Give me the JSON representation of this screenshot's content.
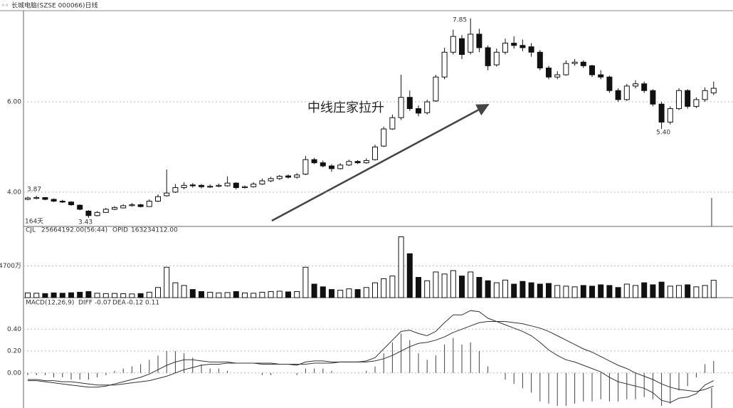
{
  "title": "长城电脑(SZSE 000066)日线",
  "chart_data": [
    {
      "type": "candlestick",
      "ylim": [
        3.24,
        8.02
      ],
      "yticks": [
        {
          "value": 6,
          "label": "6.00"
        },
        {
          "value": 4,
          "label": "4.00"
        }
      ],
      "grid": true,
      "up_color": "#ffffff",
      "down_color": "#111111",
      "edge_color": "#111111",
      "annotations": [
        "3.87",
        "3.43",
        "7.85",
        "5.40",
        "164天",
        "中线庄家拉升"
      ],
      "ohlc": [
        [
          3.84,
          3.9,
          3.82,
          3.87
        ],
        [
          3.86,
          3.92,
          3.84,
          3.88
        ],
        [
          3.88,
          3.89,
          3.82,
          3.84
        ],
        [
          3.84,
          3.86,
          3.78,
          3.8
        ],
        [
          3.8,
          3.83,
          3.76,
          3.78
        ],
        [
          3.78,
          3.8,
          3.7,
          3.72
        ],
        [
          3.71,
          3.73,
          3.6,
          3.62
        ],
        [
          3.58,
          3.6,
          3.43,
          3.48
        ],
        [
          3.48,
          3.58,
          3.46,
          3.55
        ],
        [
          3.55,
          3.65,
          3.54,
          3.62
        ],
        [
          3.62,
          3.69,
          3.6,
          3.66
        ],
        [
          3.65,
          3.73,
          3.64,
          3.7
        ],
        [
          3.7,
          3.76,
          3.68,
          3.72
        ],
        [
          3.72,
          3.74,
          3.66,
          3.68
        ],
        [
          3.68,
          3.84,
          3.67,
          3.8
        ],
        [
          3.8,
          3.95,
          3.78,
          3.9
        ],
        [
          3.92,
          4.5,
          3.9,
          3.98
        ],
        [
          4.0,
          4.18,
          3.98,
          4.1
        ],
        [
          4.1,
          4.22,
          4.06,
          4.15
        ],
        [
          4.16,
          4.2,
          4.1,
          4.14
        ],
        [
          4.15,
          4.18,
          4.08,
          4.12
        ],
        [
          4.11,
          4.17,
          4.09,
          4.13
        ],
        [
          4.13,
          4.19,
          4.11,
          4.15
        ],
        [
          4.14,
          4.35,
          4.12,
          4.2
        ],
        [
          4.2,
          4.22,
          4.06,
          4.1
        ],
        [
          4.1,
          4.15,
          4.08,
          4.12
        ],
        [
          4.12,
          4.22,
          4.1,
          4.18
        ],
        [
          4.18,
          4.3,
          4.16,
          4.25
        ],
        [
          4.25,
          4.34,
          4.22,
          4.3
        ],
        [
          4.3,
          4.38,
          4.27,
          4.35
        ],
        [
          4.36,
          4.39,
          4.3,
          4.33
        ],
        [
          4.33,
          4.42,
          4.3,
          4.38
        ],
        [
          4.4,
          4.8,
          4.38,
          4.72
        ],
        [
          4.72,
          4.76,
          4.62,
          4.65
        ],
        [
          4.65,
          4.7,
          4.55,
          4.58
        ],
        [
          4.58,
          4.62,
          4.45,
          4.52
        ],
        [
          4.52,
          4.64,
          4.5,
          4.6
        ],
        [
          4.6,
          4.72,
          4.58,
          4.68
        ],
        [
          4.68,
          4.71,
          4.62,
          4.65
        ],
        [
          4.65,
          4.75,
          4.63,
          4.7
        ],
        [
          4.72,
          5.05,
          4.7,
          5.0
        ],
        [
          5.02,
          5.45,
          5.0,
          5.4
        ],
        [
          5.4,
          5.72,
          5.38,
          5.65
        ],
        [
          5.65,
          6.6,
          5.6,
          6.1
        ],
        [
          6.1,
          6.25,
          5.8,
          5.85
        ],
        [
          5.85,
          5.92,
          5.68,
          5.75
        ],
        [
          5.76,
          6.05,
          5.72,
          6.0
        ],
        [
          6.02,
          6.6,
          6.0,
          6.55
        ],
        [
          6.55,
          7.2,
          6.5,
          7.1
        ],
        [
          7.1,
          7.6,
          7.05,
          7.45
        ],
        [
          7.4,
          7.48,
          6.95,
          7.05
        ],
        [
          7.1,
          7.85,
          7.05,
          7.5
        ],
        [
          7.5,
          7.62,
          7.1,
          7.2
        ],
        [
          7.2,
          7.25,
          6.7,
          6.8
        ],
        [
          6.82,
          7.18,
          6.78,
          7.1
        ],
        [
          7.1,
          7.4,
          7.05,
          7.3
        ],
        [
          7.3,
          7.45,
          7.18,
          7.25
        ],
        [
          7.25,
          7.38,
          7.12,
          7.2
        ],
        [
          7.22,
          7.3,
          7.0,
          7.1
        ],
        [
          7.1,
          7.15,
          6.7,
          6.75
        ],
        [
          6.75,
          6.8,
          6.5,
          6.55
        ],
        [
          6.55,
          6.68,
          6.5,
          6.6
        ],
        [
          6.6,
          6.92,
          6.58,
          6.85
        ],
        [
          6.85,
          6.95,
          6.8,
          6.88
        ],
        [
          6.88,
          6.92,
          6.75,
          6.8
        ],
        [
          6.8,
          6.82,
          6.55,
          6.6
        ],
        [
          6.6,
          6.7,
          6.5,
          6.55
        ],
        [
          6.55,
          6.58,
          6.2,
          6.25
        ],
        [
          6.25,
          6.3,
          6.0,
          6.05
        ],
        [
          6.05,
          6.4,
          6.02,
          6.35
        ],
        [
          6.35,
          6.48,
          6.3,
          6.4
        ],
        [
          6.4,
          6.45,
          6.2,
          6.25
        ],
        [
          6.25,
          6.28,
          5.9,
          5.95
        ],
        [
          5.95,
          6.0,
          5.4,
          5.55
        ],
        [
          5.55,
          5.9,
          5.5,
          5.85
        ],
        [
          5.85,
          6.3,
          5.82,
          6.25
        ],
        [
          6.25,
          6.28,
          5.85,
          5.9
        ],
        [
          5.9,
          6.1,
          5.86,
          6.05
        ],
        [
          6.05,
          6.32,
          6.0,
          6.25
        ],
        [
          6.2,
          6.45,
          6.15,
          6.3
        ]
      ]
    },
    {
      "type": "bar",
      "header": [
        "CJL",
        "25664192.00(56:44)",
        "OPID",
        "163234112.00"
      ],
      "ylim": [
        0,
        9800
      ],
      "yticks": [
        {
          "value": 4700,
          "label": "4700万"
        }
      ],
      "grid": true,
      "values": [
        700,
        650,
        600,
        700,
        650,
        720,
        800,
        900,
        650,
        600,
        620,
        580,
        550,
        600,
        800,
        1500,
        4500,
        2200,
        1800,
        1200,
        900,
        800,
        700,
        750,
        900,
        700,
        650,
        800,
        900,
        950,
        850,
        900,
        4500,
        2000,
        1600,
        1200,
        1100,
        1300,
        1200,
        1500,
        2200,
        2800,
        3200,
        9000,
        6500,
        3000,
        2500,
        3800,
        3500,
        4000,
        3200,
        3800,
        3000,
        2500,
        2200,
        2600,
        2000,
        2400,
        2200,
        2000,
        2100,
        1800,
        1700,
        1600,
        1800,
        1700,
        1900,
        1800,
        1500,
        2000,
        1800,
        2200,
        1900,
        2300,
        1700,
        1800,
        1900,
        1600,
        1800,
        2566
      ]
    },
    {
      "type": "macd",
      "header": [
        "MACD(12,26,9)",
        "DIFF",
        "-0.07",
        "DEA",
        "-0.12",
        "0.11"
      ],
      "ylim": [
        -0.32,
        0.61
      ],
      "yticks": [
        {
          "value": 0.4,
          "label": "0.40"
        },
        {
          "value": 0.2,
          "label": "0.20"
        },
        {
          "value": 0,
          "label": "0.00"
        }
      ],
      "grid": true,
      "diff": [
        -0.07,
        -0.07,
        -0.08,
        -0.09,
        -0.1,
        -0.11,
        -0.12,
        -0.13,
        -0.13,
        -0.12,
        -0.1,
        -0.08,
        -0.06,
        -0.04,
        -0.01,
        0.03,
        0.07,
        0.1,
        0.12,
        0.12,
        0.11,
        0.1,
        0.1,
        0.1,
        0.09,
        0.09,
        0.09,
        0.08,
        0.08,
        0.08,
        0.08,
        0.07,
        0.1,
        0.11,
        0.11,
        0.1,
        0.1,
        0.1,
        0.1,
        0.11,
        0.14,
        0.22,
        0.3,
        0.38,
        0.39,
        0.36,
        0.34,
        0.38,
        0.46,
        0.53,
        0.53,
        0.57,
        0.56,
        0.5,
        0.47,
        0.44,
        0.41,
        0.38,
        0.34,
        0.28,
        0.21,
        0.16,
        0.12,
        0.1,
        0.07,
        0.04,
        0.01,
        -0.04,
        -0.08,
        -0.1,
        -0.12,
        -0.14,
        -0.18,
        -0.25,
        -0.27,
        -0.23,
        -0.22,
        -0.19,
        -0.11,
        -0.07
      ],
      "dea": [
        -0.06,
        -0.06,
        -0.07,
        -0.07,
        -0.08,
        -0.08,
        -0.09,
        -0.1,
        -0.11,
        -0.11,
        -0.11,
        -0.1,
        -0.09,
        -0.08,
        -0.07,
        -0.05,
        -0.03,
        0.0,
        0.03,
        0.05,
        0.07,
        0.08,
        0.08,
        0.09,
        0.09,
        0.09,
        0.09,
        0.09,
        0.09,
        0.08,
        0.08,
        0.08,
        0.08,
        0.09,
        0.09,
        0.09,
        0.1,
        0.1,
        0.1,
        0.1,
        0.11,
        0.13,
        0.16,
        0.2,
        0.24,
        0.27,
        0.28,
        0.3,
        0.33,
        0.37,
        0.4,
        0.43,
        0.46,
        0.47,
        0.47,
        0.47,
        0.46,
        0.45,
        0.43,
        0.41,
        0.38,
        0.34,
        0.3,
        0.26,
        0.22,
        0.19,
        0.15,
        0.11,
        0.07,
        0.04,
        0.0,
        -0.03,
        -0.06,
        -0.1,
        -0.13,
        -0.15,
        -0.16,
        -0.17,
        -0.15,
        -0.12
      ],
      "hist": [
        -0.02,
        -0.02,
        -0.02,
        -0.04,
        -0.04,
        -0.06,
        -0.06,
        -0.06,
        -0.04,
        -0.02,
        0.02,
        0.04,
        0.06,
        0.08,
        0.12,
        0.16,
        0.2,
        0.2,
        0.18,
        0.14,
        0.08,
        0.04,
        0.04,
        0.02,
        0.0,
        0.0,
        0.0,
        -0.02,
        -0.02,
        0.0,
        0.0,
        -0.02,
        0.04,
        0.04,
        0.04,
        0.02,
        0.0,
        0.0,
        0.0,
        0.02,
        0.06,
        0.18,
        0.28,
        0.36,
        0.3,
        0.18,
        0.12,
        0.16,
        0.26,
        0.32,
        0.26,
        0.28,
        0.2,
        0.06,
        0.0,
        -0.06,
        -0.1,
        -0.14,
        -0.18,
        -0.26,
        -0.28,
        -0.3,
        -0.3,
        -0.28,
        -0.26,
        -0.26,
        -0.24,
        -0.26,
        -0.26,
        -0.24,
        -0.24,
        -0.22,
        -0.24,
        -0.3,
        -0.28,
        -0.16,
        -0.12,
        -0.04,
        0.08,
        0.11
      ]
    }
  ]
}
